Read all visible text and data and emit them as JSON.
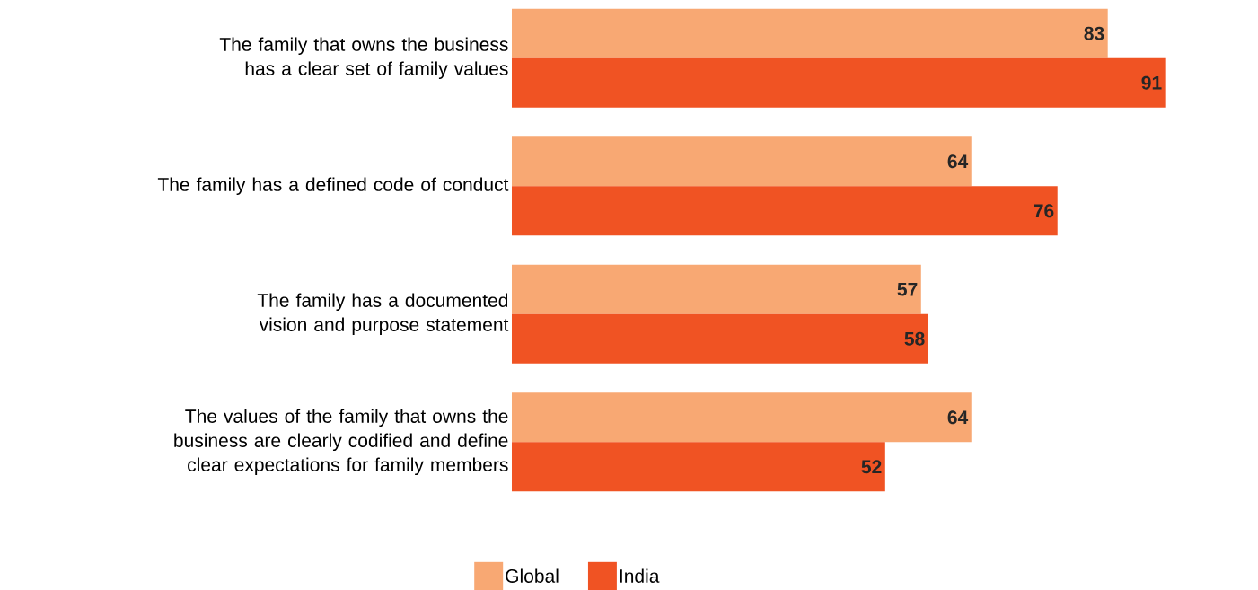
{
  "chart_data": {
    "type": "bar",
    "orientation": "horizontal",
    "data_labels": true,
    "legend": "bottom",
    "categories": [
      "The family that owns the business has a clear set of family values",
      "The family has a defined code of conduct",
      "The family has a documented vision and purpose statement",
      "The values of the family that owns the business are clearly codified and define clear expectations for family members"
    ],
    "series": [
      {
        "name": "Global",
        "color": "#f8a873",
        "values": [
          83,
          64,
          57,
          64
        ]
      },
      {
        "name": "India",
        "color": "#f05323",
        "values": [
          91,
          76,
          58,
          52
        ]
      }
    ]
  }
}
